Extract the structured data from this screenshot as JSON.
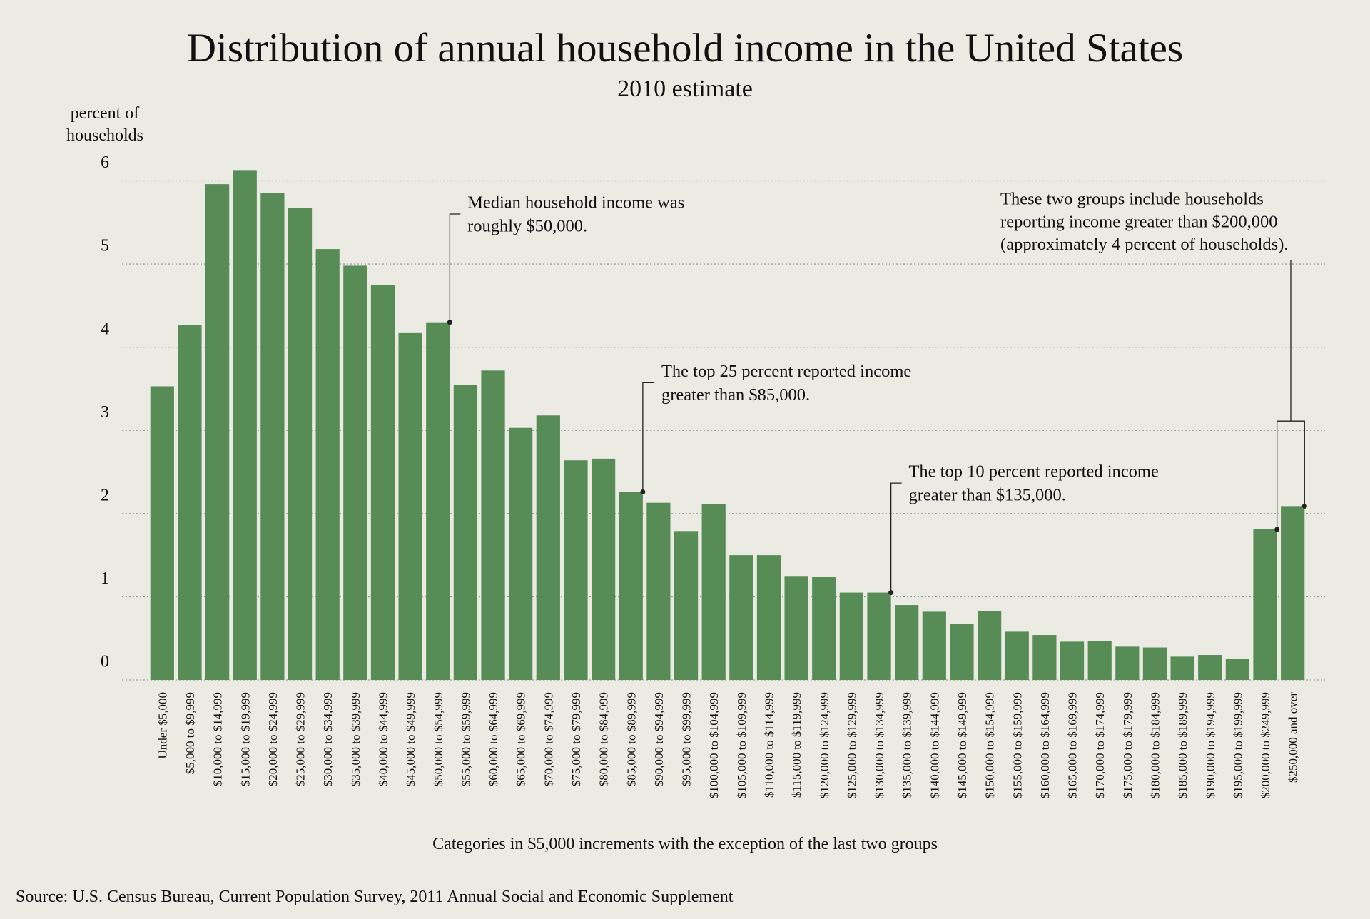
{
  "chart_data": {
    "type": "bar",
    "title": "Distribution of annual household income in the United States",
    "subtitle": "2010 estimate",
    "ylabel": [
      "percent of",
      "households"
    ],
    "xlabel": "Categories in $5,000 increments with the exception of the last two groups",
    "source": "Source: U.S. Census Bureau, Current Population Survey, 2011 Annual Social and Economic Supplement",
    "categories": [
      "Under $5,000",
      "$5,000 to $9,999",
      "$10,000 to $14,999",
      "$15,000 to $19,999",
      "$20,000 to $24,999",
      "$25,000 to $29,999",
      "$30,000 to $34,999",
      "$35,000 to $39,999",
      "$40,000 to $44,999",
      "$45,000 to $49,999",
      "$50,000 to $54,999",
      "$55,000 to $59,999",
      "$60,000 to $64,999",
      "$65,000 to $69,999",
      "$70,000 to $74,999",
      "$75,000 to $79,999",
      "$80,000 to $84,999",
      "$85,000 to $89,999",
      "$90,000 to $94,999",
      "$95,000 to $99,999",
      "$100,000 to $104,999",
      "$105,000 to $109,999",
      "$110,000 to $114,999",
      "$115,000 to $119,999",
      "$120,000 to $124,999",
      "$125,000 to $129,999",
      "$130,000 to $134,999",
      "$135,000 to $139,999",
      "$140,000 to $144,999",
      "$145,000 to $149,999",
      "$150,000 to $154,999",
      "$155,000 to $159,999",
      "$160,000 to $164,999",
      "$165,000 to $169,999",
      "$170,000 to $174,999",
      "$175,000 to $179,999",
      "$180,000 to $184,999",
      "$185,000 to $189,999",
      "$190,000 to $194,999",
      "$195,000 to $199,999",
      "$200,000 to $249,999",
      "$250,000 and over"
    ],
    "values": [
      3.53,
      4.27,
      5.96,
      6.13,
      5.85,
      5.67,
      5.18,
      4.98,
      4.75,
      4.17,
      4.3,
      3.55,
      3.72,
      3.03,
      3.18,
      2.64,
      2.66,
      2.26,
      2.13,
      1.79,
      2.11,
      1.5,
      1.5,
      1.25,
      1.24,
      1.05,
      1.05,
      0.9,
      0.82,
      0.67,
      0.83,
      0.58,
      0.54,
      0.46,
      0.47,
      0.4,
      0.39,
      0.28,
      0.3,
      0.25,
      1.81,
      2.09
    ],
    "color": "#578c57",
    "ylim": [
      0,
      6.3
    ],
    "yticks": [
      0,
      1,
      2,
      3,
      4,
      5,
      6
    ],
    "grid": true,
    "annotations": [
      {
        "lines": [
          "Median household income was",
          "roughly $50,000."
        ]
      },
      {
        "lines": [
          "The top 25 percent reported income",
          "greater than $85,000."
        ]
      },
      {
        "lines": [
          "The top 10 percent reported income",
          "greater than $135,000."
        ]
      },
      {
        "lines": [
          "These two groups include households",
          "reporting income greater than $200,000",
          "(approximately 4 percent of households)."
        ]
      }
    ]
  }
}
